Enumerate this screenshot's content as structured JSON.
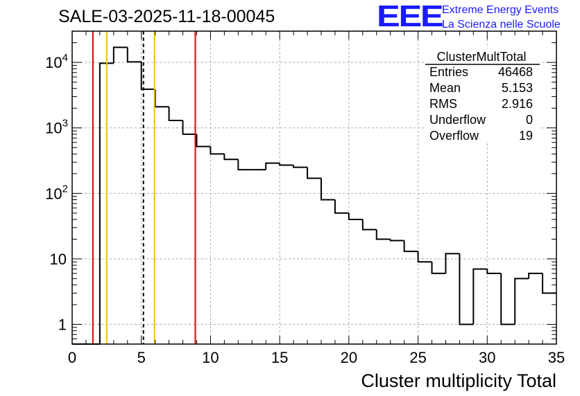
{
  "header": {
    "title": "SALE-03-2025-11-18-00045",
    "logo_text": "EEE",
    "logo_line1": "Extreme Energy Events",
    "logo_line2": "La Scienza nelle Scuole",
    "logo_color": "#1a1aff"
  },
  "stats": {
    "name": "ClusterMultTotal",
    "rows": [
      {
        "label": "Entries",
        "value": "46468"
      },
      {
        "label": "Mean",
        "value": "5.153"
      },
      {
        "label": "RMS",
        "value": "2.916"
      },
      {
        "label": "Underflow",
        "value": "0"
      },
      {
        "label": "Overflow",
        "value": "19"
      }
    ]
  },
  "chart_data": {
    "type": "histogram",
    "title": "SALE-03-2025-11-18-00045",
    "xlabel": "Cluster multiplicity Total",
    "ylabel": "",
    "yscale": "log",
    "xlim": [
      0,
      35
    ],
    "ylim": [
      0.5,
      30000
    ],
    "bin_width": 1,
    "bin_edges_start": 0,
    "counts": [
      0,
      0,
      9700,
      17000,
      10200,
      3900,
      2100,
      1300,
      800,
      520,
      400,
      330,
      230,
      230,
      290,
      270,
      250,
      170,
      80,
      50,
      40,
      28,
      20,
      19,
      13,
      9,
      6,
      12,
      1,
      7,
      6,
      1,
      5,
      6,
      3
    ],
    "x_ticks": [
      0,
      5,
      10,
      15,
      20,
      25,
      30,
      35
    ],
    "x_tick_labels": [
      "0",
      "5",
      "10",
      "15",
      "20",
      "25",
      "30",
      "35"
    ],
    "y_ticks": [
      1,
      10,
      100,
      1000,
      10000
    ],
    "y_tick_labels": [
      {
        "base": "1",
        "exp": ""
      },
      {
        "base": "10",
        "exp": ""
      },
      {
        "base": "10",
        "exp": "2"
      },
      {
        "base": "10",
        "exp": "3"
      },
      {
        "base": "10",
        "exp": "4"
      }
    ],
    "grid": true,
    "vertical_lines": [
      {
        "x": 1.5,
        "color": "#e00000",
        "style": "solid"
      },
      {
        "x": 2.5,
        "color": "#f0c000",
        "style": "solid"
      },
      {
        "x": 5.153,
        "color": "#000000",
        "style": "dashed"
      },
      {
        "x": 5.95,
        "color": "#f0c000",
        "style": "solid"
      },
      {
        "x": 8.9,
        "color": "#e00000",
        "style": "solid"
      }
    ]
  }
}
